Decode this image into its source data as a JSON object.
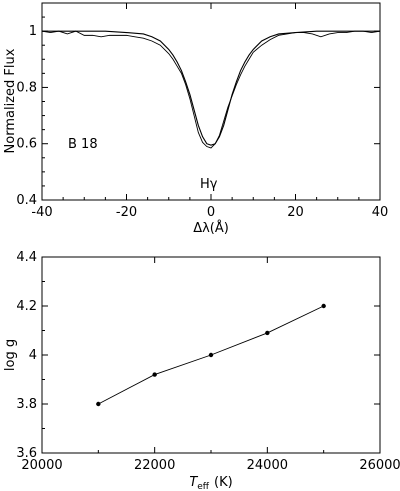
{
  "chart_data": [
    {
      "type": "line",
      "panel_label": "B 18",
      "line_label": "Hγ",
      "xlabel": "Δλ(Å)",
      "ylabel": "Normalized Flux",
      "xlim": [
        -40,
        40
      ],
      "ylim": [
        0.4,
        1.1
      ],
      "xticks": [
        -40,
        -20,
        0,
        20,
        40
      ],
      "yticks": [
        0.4,
        0.6,
        0.8,
        1
      ],
      "grid": false,
      "series": [
        {
          "role": "observed spectrum",
          "x": [
            -40,
            -38,
            -36,
            -34,
            -32,
            -30,
            -28,
            -26,
            -24,
            -22,
            -20,
            -18,
            -16,
            -14,
            -12,
            -10,
            -9,
            -8,
            -7,
            -6,
            -5,
            -4,
            -3,
            -2,
            -1,
            0,
            1,
            2,
            3,
            4,
            5,
            6,
            7,
            8,
            9,
            10,
            12,
            14,
            16,
            18,
            20,
            22,
            24,
            26,
            28,
            30,
            32,
            34,
            36,
            38,
            40
          ],
          "y": [
            1.0,
            0.995,
            1.0,
            0.99,
            1.0,
            0.985,
            0.985,
            0.98,
            0.985,
            0.985,
            0.985,
            0.98,
            0.975,
            0.965,
            0.95,
            0.92,
            0.9,
            0.875,
            0.85,
            0.81,
            0.76,
            0.7,
            0.64,
            0.605,
            0.59,
            0.585,
            0.6,
            0.63,
            0.68,
            0.73,
            0.77,
            0.81,
            0.845,
            0.875,
            0.9,
            0.925,
            0.95,
            0.97,
            0.985,
            0.99,
            0.995,
            0.995,
            0.99,
            0.98,
            0.99,
            0.995,
            0.995,
            1.0,
            1.0,
            0.995,
            1.0
          ]
        },
        {
          "role": "model fit",
          "x": [
            -40,
            -30,
            -25,
            -20,
            -16,
            -14,
            -12,
            -10,
            -9,
            -8,
            -7,
            -6,
            -5,
            -4,
            -3,
            -2,
            -1,
            0,
            1,
            2,
            3,
            4,
            5,
            6,
            7,
            8,
            9,
            10,
            12,
            14,
            16,
            20,
            25,
            30,
            40
          ],
          "y": [
            1.0,
            1.0,
            1.0,
            0.995,
            0.99,
            0.98,
            0.965,
            0.935,
            0.915,
            0.89,
            0.86,
            0.82,
            0.775,
            0.72,
            0.665,
            0.625,
            0.6,
            0.595,
            0.6,
            0.625,
            0.665,
            0.72,
            0.775,
            0.82,
            0.86,
            0.89,
            0.915,
            0.935,
            0.965,
            0.98,
            0.99,
            0.995,
            1.0,
            1.0,
            1.0
          ]
        }
      ]
    },
    {
      "type": "line",
      "xlabel_main": "T",
      "xlabel_sub": "eff",
      "xlabel_unit": "(K)",
      "ylabel": "log g",
      "xlim": [
        20000,
        26000
      ],
      "ylim": [
        3.6,
        4.4
      ],
      "xticks": [
        20000,
        22000,
        24000,
        26000
      ],
      "yticks": [
        3.6,
        3.8,
        4,
        4.2,
        4.4
      ],
      "grid": false,
      "x": [
        21000,
        22000,
        23000,
        24000,
        25000
      ],
      "y": [
        3.8,
        3.92,
        4.0,
        4.09,
        4.2
      ]
    }
  ]
}
